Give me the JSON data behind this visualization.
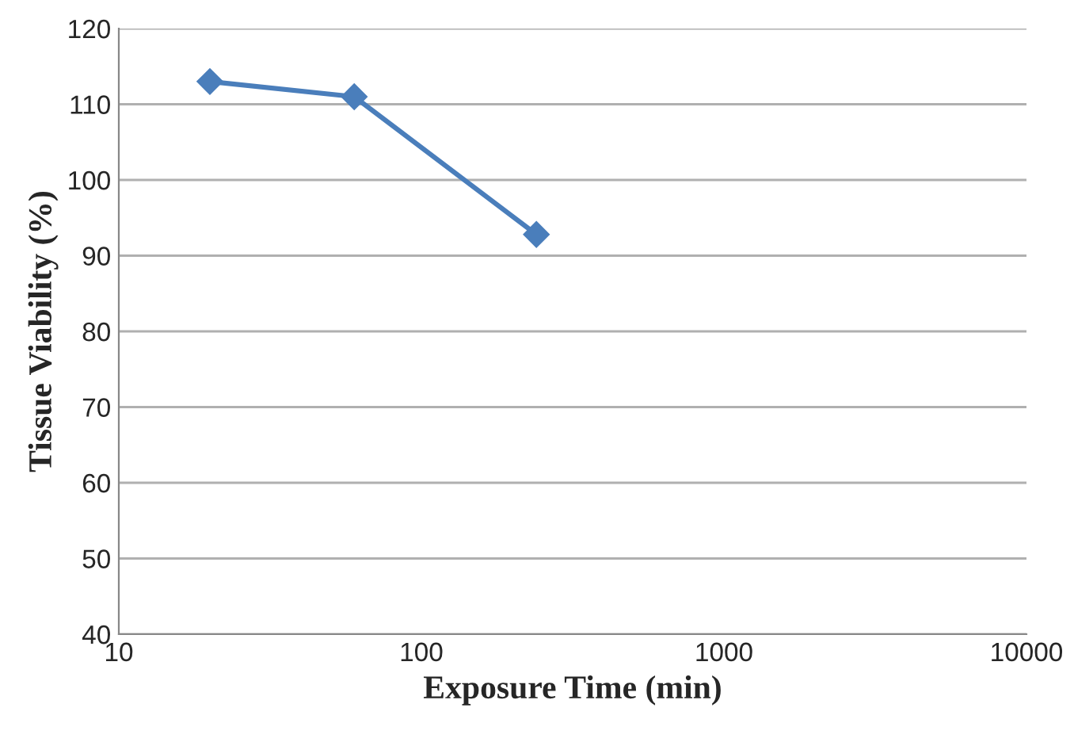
{
  "chart_data": {
    "type": "line",
    "xlabel": "Exposure Time (min)",
    "ylabel": "Tissue Viability (%)",
    "x": [
      20,
      60,
      240
    ],
    "series": [
      {
        "color": "#4a7ebb",
        "values": [
          113,
          111,
          92.8
        ]
      }
    ],
    "log": "x",
    "xlim": [
      10,
      10000
    ],
    "xticks": [
      10,
      100,
      1000,
      10000
    ],
    "ylim": [
      40,
      120
    ],
    "yticks": [
      40,
      50,
      60,
      70,
      80,
      90,
      100,
      110,
      120
    ],
    "grid": "y",
    "marker": "diamond",
    "line_style": "solid",
    "legend": false
  }
}
